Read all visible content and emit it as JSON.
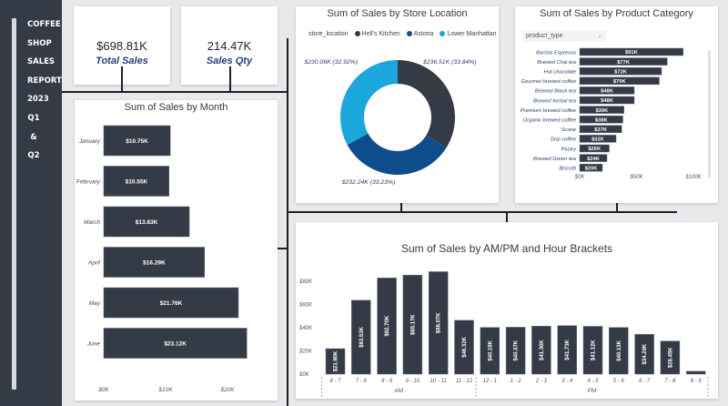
{
  "sidebar": {
    "title": "COFFEE\n\nSHOP\n\nSALES\n\nREPORT\n\n2023\n\nQ1\n\n&\n\nQ2"
  },
  "kpis": [
    {
      "value": "$698.81K",
      "label": "Total Sales"
    },
    {
      "value": "214.47K",
      "label": "Sales Qty"
    }
  ],
  "colors": {
    "bar": "#353b46",
    "hells_kitchen": "#353b46",
    "astoria": "#0f4c8c",
    "lower_manhattan": "#1aa7dc"
  },
  "chart_data": [
    {
      "type": "bar",
      "orientation": "horizontal",
      "title": "Sum of Sales by Month",
      "categories": [
        "January",
        "February",
        "March",
        "April",
        "May",
        "June"
      ],
      "values": [
        10.75,
        10.55,
        13.83,
        16.29,
        21.76,
        23.12
      ],
      "labels": [
        "$10.75K",
        "$10.55K",
        "$13.83K",
        "$16.29K",
        "$21.76K",
        "$23.12K"
      ],
      "xticks": [
        "$0K",
        "$10K",
        "$20K"
      ],
      "xlim": [
        0,
        25
      ],
      "unit": "K"
    },
    {
      "type": "pie",
      "style": "donut",
      "title": "Sum of Sales by Store Location",
      "legend_title": "store_location",
      "legend_position": "top-left",
      "categories": [
        "Hell's Kitchen",
        "Astoria",
        "Lower Manhattan"
      ],
      "values": [
        236.51,
        232.24,
        230.06
      ],
      "percents": [
        33.84,
        33.23,
        32.92
      ],
      "labels": [
        "$236.51K (33.84%)",
        "$232.24K (33.23%)",
        "$230.06K (32.92%)"
      ]
    },
    {
      "type": "bar",
      "orientation": "horizontal",
      "title": "Sum of Sales by Product Category",
      "filter_label": "product_type",
      "categories": [
        "Barista Espresso",
        "Brewed Chai tea",
        "Hot chocolate",
        "Gourmet brewed coffee",
        "Brewed Black tea",
        "Brewed herbal tea",
        "Premium brewed coffee",
        "Organic brewed coffee",
        "Scone",
        "Drip coffee",
        "Pastry",
        "Brewed Green tea",
        "Biscotti"
      ],
      "values": [
        91,
        77,
        72,
        70,
        48,
        48,
        39,
        38,
        37,
        32,
        26,
        24,
        20
      ],
      "labels": [
        "$91K",
        "$77K",
        "$72K",
        "$70K",
        "$48K",
        "$48K",
        "$39K",
        "$38K",
        "$37K",
        "$32K",
        "$26K",
        "$24K",
        "$20K"
      ],
      "xticks": [
        "$0K",
        "$50K",
        "$100K"
      ],
      "xlim": [
        0,
        100
      ],
      "unit": "K"
    },
    {
      "type": "bar",
      "orientation": "vertical",
      "title": "Sum of Sales by AM/PM and Hour Brackets",
      "categories": [
        "6 - 7",
        "7 - 8",
        "8 - 9",
        "9 - 10",
        "10 - 11",
        "11 - 12",
        "12 - 1",
        "1 - 2",
        "2 - 3",
        "3 - 4",
        "4 - 5",
        "5 - 6",
        "6 - 7",
        "7 - 8",
        "8 - 9"
      ],
      "groups": [
        {
          "name": "AM",
          "count": 6
        },
        {
          "name": "PM",
          "count": 9
        }
      ],
      "values": [
        21.9,
        63.53,
        82.7,
        85.17,
        88.07,
        46.32,
        40.18,
        40.37,
        41.3,
        41.73,
        41.12,
        40.13,
        34.29,
        28.45,
        2.5
      ],
      "labels": [
        "$21.90K",
        "$63.53K",
        "$82.70K",
        "$85.17K",
        "$88.07K",
        "$46.32K",
        "$40.18K",
        "$40.37K",
        "$41.30K",
        "$41.73K",
        "$41.12K",
        "$40.13K",
        "$34.29K",
        "$28.45K",
        ""
      ],
      "yticks": [
        "$0K",
        "$20K",
        "$40K",
        "$60K",
        "$80K"
      ],
      "ylim": [
        0,
        90
      ],
      "unit": "K"
    }
  ]
}
